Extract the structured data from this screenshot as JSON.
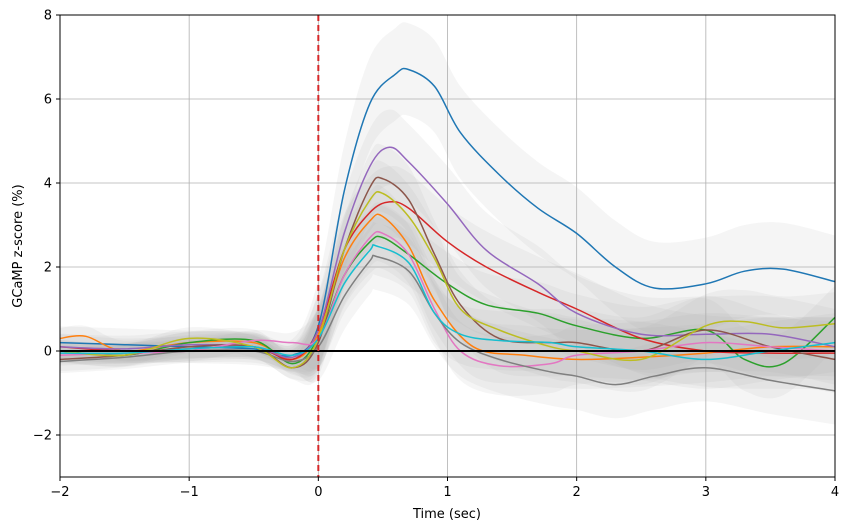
{
  "chart_data": {
    "type": "line",
    "xlabel": "Time (sec)",
    "ylabel": "GCaMP z-score (%)",
    "xlim": [
      -2,
      4
    ],
    "ylim": [
      -3,
      8
    ],
    "xticks": [
      -2,
      -1,
      0,
      1,
      2,
      3,
      4
    ],
    "xtick_labels": [
      "−2",
      "−1",
      "0",
      "1",
      "2",
      "3",
      "4"
    ],
    "yticks": [
      -2,
      0,
      2,
      4,
      6,
      8
    ],
    "ytick_labels": [
      "−2",
      "0",
      "2",
      "4",
      "6",
      "8"
    ],
    "grid": true,
    "event_line": {
      "x": 0,
      "color": "#d62728",
      "style": "dashed"
    },
    "baseline": {
      "y": 0,
      "color": "#000000"
    },
    "band_color": "#b0b0b0",
    "series": [
      {
        "color": "#1f77b4",
        "band": 1.1,
        "points": [
          [
            -2,
            0.2
          ],
          [
            -1.5,
            0.15
          ],
          [
            -1,
            0.1
          ],
          [
            -0.5,
            0.05
          ],
          [
            -0.2,
            -0.1
          ],
          [
            0,
            0.6
          ],
          [
            0.2,
            3.8
          ],
          [
            0.4,
            5.9
          ],
          [
            0.6,
            6.6
          ],
          [
            0.7,
            6.7
          ],
          [
            0.9,
            6.3
          ],
          [
            1.1,
            5.2
          ],
          [
            1.4,
            4.2
          ],
          [
            1.7,
            3.4
          ],
          [
            2,
            2.8
          ],
          [
            2.3,
            2.0
          ],
          [
            2.6,
            1.5
          ],
          [
            3,
            1.6
          ],
          [
            3.3,
            1.9
          ],
          [
            3.6,
            1.95
          ],
          [
            4,
            1.65
          ]
        ]
      },
      {
        "color": "#ff7f0e",
        "band": 0.7,
        "points": [
          [
            -2,
            0.3
          ],
          [
            -1.8,
            0.35
          ],
          [
            -1.5,
            0.0
          ],
          [
            -1,
            0.2
          ],
          [
            -0.5,
            0.2
          ],
          [
            -0.2,
            -0.2
          ],
          [
            0,
            0.4
          ],
          [
            0.2,
            2.2
          ],
          [
            0.4,
            3.1
          ],
          [
            0.5,
            3.2
          ],
          [
            0.7,
            2.5
          ],
          [
            0.9,
            1.2
          ],
          [
            1.2,
            0.1
          ],
          [
            1.6,
            -0.1
          ],
          [
            2,
            -0.2
          ],
          [
            2.5,
            -0.15
          ],
          [
            3,
            -0.05
          ],
          [
            3.5,
            0.1
          ],
          [
            4,
            0.1
          ]
        ]
      },
      {
        "color": "#2ca02c",
        "band": 0.75,
        "points": [
          [
            -2,
            0.0
          ],
          [
            -1.5,
            -0.1
          ],
          [
            -1,
            0.2
          ],
          [
            -0.5,
            0.25
          ],
          [
            -0.2,
            -0.3
          ],
          [
            0,
            0.3
          ],
          [
            0.2,
            1.8
          ],
          [
            0.4,
            2.6
          ],
          [
            0.5,
            2.7
          ],
          [
            0.7,
            2.3
          ],
          [
            1,
            1.6
          ],
          [
            1.3,
            1.1
          ],
          [
            1.7,
            0.9
          ],
          [
            2,
            0.6
          ],
          [
            2.5,
            0.3
          ],
          [
            3,
            0.5
          ],
          [
            3.3,
            -0.2
          ],
          [
            3.6,
            -0.3
          ],
          [
            4,
            0.8
          ]
        ]
      },
      {
        "color": "#d62728",
        "band": 0.85,
        "points": [
          [
            -2,
            0.1
          ],
          [
            -1.5,
            0.0
          ],
          [
            -1,
            0.05
          ],
          [
            -0.5,
            0.1
          ],
          [
            -0.2,
            -0.2
          ],
          [
            0,
            0.5
          ],
          [
            0.2,
            2.4
          ],
          [
            0.4,
            3.3
          ],
          [
            0.55,
            3.55
          ],
          [
            0.7,
            3.4
          ],
          [
            1,
            2.6
          ],
          [
            1.3,
            2.0
          ],
          [
            1.7,
            1.4
          ],
          [
            2,
            1.0
          ],
          [
            2.5,
            0.3
          ],
          [
            3,
            0.0
          ],
          [
            3.5,
            -0.05
          ],
          [
            4,
            -0.05
          ]
        ]
      },
      {
        "color": "#9467bd",
        "band": 0.9,
        "points": [
          [
            -2,
            0.1
          ],
          [
            -1.5,
            0.05
          ],
          [
            -1,
            0.15
          ],
          [
            -0.5,
            0.1
          ],
          [
            -0.2,
            -0.15
          ],
          [
            0,
            0.5
          ],
          [
            0.2,
            2.8
          ],
          [
            0.4,
            4.4
          ],
          [
            0.55,
            4.85
          ],
          [
            0.7,
            4.5
          ],
          [
            1,
            3.5
          ],
          [
            1.3,
            2.4
          ],
          [
            1.7,
            1.6
          ],
          [
            2,
            0.9
          ],
          [
            2.5,
            0.4
          ],
          [
            3,
            0.4
          ],
          [
            3.5,
            0.4
          ],
          [
            4,
            0.1
          ]
        ]
      },
      {
        "color": "#8c564b",
        "band": 0.8,
        "points": [
          [
            -2,
            -0.2
          ],
          [
            -1.5,
            -0.1
          ],
          [
            -1,
            0.1
          ],
          [
            -0.5,
            0.1
          ],
          [
            -0.2,
            -0.4
          ],
          [
            0,
            0.2
          ],
          [
            0.2,
            2.4
          ],
          [
            0.4,
            3.9
          ],
          [
            0.5,
            4.1
          ],
          [
            0.7,
            3.6
          ],
          [
            0.9,
            2.3
          ],
          [
            1.1,
            1.1
          ],
          [
            1.4,
            0.3
          ],
          [
            1.8,
            0.2
          ],
          [
            2,
            0.2
          ],
          [
            2.5,
            0.0
          ],
          [
            3,
            0.5
          ],
          [
            3.5,
            0.1
          ],
          [
            4,
            -0.2
          ]
        ]
      },
      {
        "color": "#e377c2",
        "band": 0.7,
        "points": [
          [
            -2,
            -0.1
          ],
          [
            -1.5,
            -0.05
          ],
          [
            -1,
            0.0
          ],
          [
            -0.5,
            0.25
          ],
          [
            -0.2,
            0.2
          ],
          [
            0,
            0.3
          ],
          [
            0.2,
            1.8
          ],
          [
            0.4,
            2.7
          ],
          [
            0.5,
            2.8
          ],
          [
            0.7,
            2.3
          ],
          [
            0.9,
            1.0
          ],
          [
            1.1,
            0.0
          ],
          [
            1.4,
            -0.35
          ],
          [
            1.8,
            -0.3
          ],
          [
            2,
            -0.1
          ],
          [
            2.5,
            0.0
          ],
          [
            3,
            0.2
          ],
          [
            3.5,
            0.1
          ],
          [
            4,
            0.0
          ]
        ]
      },
      {
        "color": "#7f7f7f",
        "band": 0.8,
        "points": [
          [
            -2,
            -0.25
          ],
          [
            -1.5,
            -0.15
          ],
          [
            -1,
            0.0
          ],
          [
            -0.5,
            0.0
          ],
          [
            -0.2,
            -0.25
          ],
          [
            0,
            0.1
          ],
          [
            0.2,
            1.3
          ],
          [
            0.4,
            2.15
          ],
          [
            0.45,
            2.25
          ],
          [
            0.7,
            1.9
          ],
          [
            0.9,
            0.9
          ],
          [
            1.1,
            0.2
          ],
          [
            1.4,
            -0.2
          ],
          [
            1.8,
            -0.5
          ],
          [
            2,
            -0.6
          ],
          [
            2.3,
            -0.8
          ],
          [
            2.6,
            -0.6
          ],
          [
            3,
            -0.4
          ],
          [
            3.5,
            -0.7
          ],
          [
            4,
            -0.95
          ]
        ]
      },
      {
        "color": "#bcbd22",
        "band": 0.75,
        "points": [
          [
            -2,
            0.0
          ],
          [
            -1.5,
            -0.1
          ],
          [
            -1,
            0.3
          ],
          [
            -0.5,
            0.1
          ],
          [
            -0.2,
            -0.4
          ],
          [
            0,
            0.3
          ],
          [
            0.2,
            2.4
          ],
          [
            0.4,
            3.6
          ],
          [
            0.5,
            3.75
          ],
          [
            0.7,
            3.2
          ],
          [
            0.9,
            2.2
          ],
          [
            1.1,
            1.0
          ],
          [
            1.4,
            0.5
          ],
          [
            1.8,
            0.1
          ],
          [
            2,
            0.0
          ],
          [
            2.5,
            -0.2
          ],
          [
            3,
            0.6
          ],
          [
            3.3,
            0.7
          ],
          [
            3.6,
            0.55
          ],
          [
            4,
            0.65
          ]
        ]
      },
      {
        "color": "#17becf",
        "band": 0.7,
        "points": [
          [
            -2,
            -0.05
          ],
          [
            -1.5,
            -0.05
          ],
          [
            -1,
            0.05
          ],
          [
            -0.5,
            0.1
          ],
          [
            -0.2,
            -0.1
          ],
          [
            0,
            0.3
          ],
          [
            0.2,
            1.6
          ],
          [
            0.4,
            2.4
          ],
          [
            0.45,
            2.5
          ],
          [
            0.7,
            2.1
          ],
          [
            0.9,
            0.9
          ],
          [
            1.1,
            0.4
          ],
          [
            1.4,
            0.25
          ],
          [
            1.8,
            0.2
          ],
          [
            2,
            0.1
          ],
          [
            2.5,
            0.0
          ],
          [
            3,
            -0.2
          ],
          [
            3.5,
            0.0
          ],
          [
            4,
            0.2
          ]
        ]
      }
    ]
  }
}
